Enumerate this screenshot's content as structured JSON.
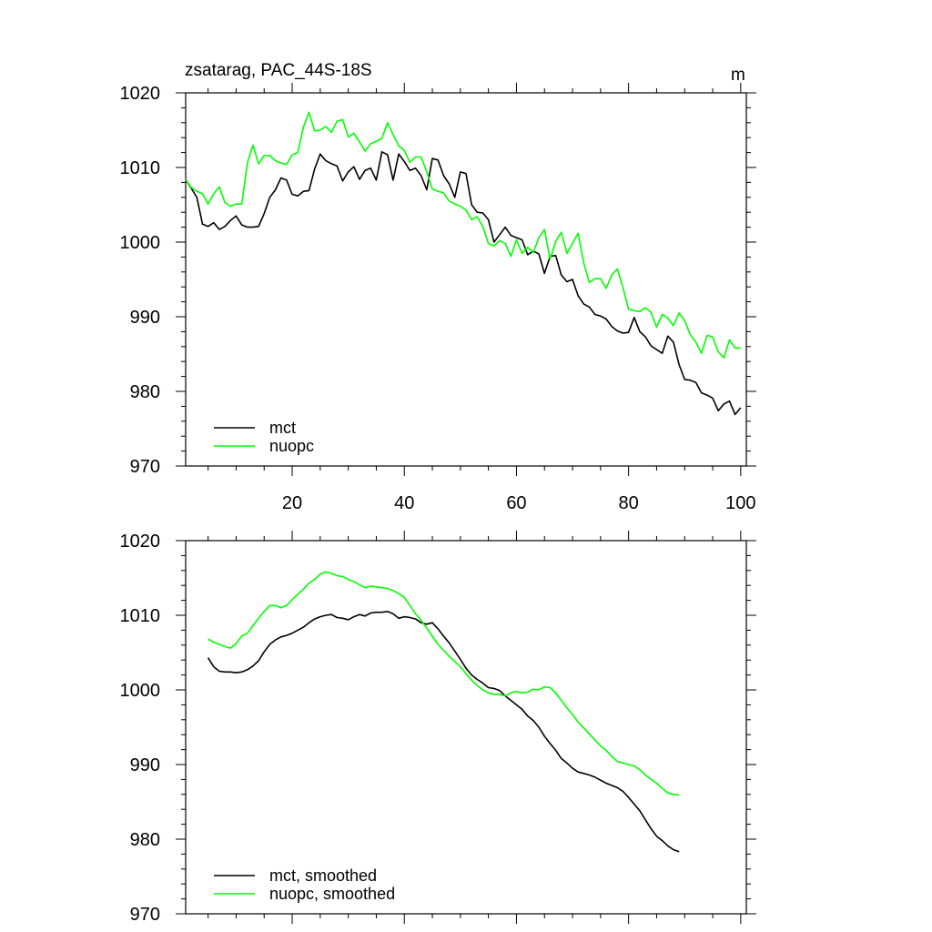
{
  "chart_data": [
    {
      "type": "line",
      "title": "zsatarag, PAC_44S-18S",
      "units": "m",
      "xlim": [
        1,
        101
      ],
      "ylim": [
        970,
        1020
      ],
      "x_ticks": [
        20,
        40,
        60,
        80,
        100
      ],
      "y_ticks": [
        970,
        980,
        990,
        1000,
        1010,
        1020
      ],
      "legend_position": "bottom-left",
      "series": [
        {
          "name": "mct",
          "color": "#000000",
          "values": [
            1008.4,
            1007.2,
            1006.0,
            1002.4,
            1002.1,
            1002.6,
            1001.7,
            1002.1,
            1002.9,
            1003.5,
            1002.3,
            1002.0,
            1002.0,
            1002.1,
            1003.8,
            1006.0,
            1007.0,
            1008.6,
            1008.3,
            1006.4,
            1006.2,
            1006.8,
            1006.9,
            1009.8,
            1011.8,
            1010.9,
            1010.5,
            1010.2,
            1008.2,
            1009.4,
            1010.1,
            1008.4,
            1009.6,
            1009.9,
            1008.3,
            1012.1,
            1011.7,
            1008.3,
            1011.8,
            1010.8,
            1009.6,
            1009.9,
            1008.9,
            1007.0,
            1011.2,
            1011.0,
            1008.9,
            1007.8,
            1006.0,
            1009.4,
            1009.2,
            1005.0,
            1004.0,
            1003.9,
            1003.0,
            1000.0,
            1001.0,
            1002.0,
            1000.9,
            1000.6,
            1000.3,
            998.3,
            998.8,
            998.4,
            995.8,
            998.1,
            998.2,
            995.6,
            994.7,
            995.0,
            992.8,
            991.7,
            991.3,
            990.3,
            990.1,
            989.7,
            988.7,
            988.1,
            987.8,
            987.9,
            989.9,
            988.0,
            987.3,
            986.1,
            985.6,
            985.1,
            987.4,
            986.6,
            983.6,
            981.6,
            981.5,
            981.2,
            979.8,
            979.5,
            979.1,
            977.4,
            978.3,
            978.7,
            976.9,
            977.8
          ]
        },
        {
          "name": "nuopc",
          "color": "#00ff00",
          "values": [
            1008.4,
            1007.3,
            1006.8,
            1006.5,
            1005.1,
            1006.5,
            1007.4,
            1005.3,
            1004.8,
            1005.1,
            1005.1,
            1010.6,
            1013.0,
            1010.5,
            1011.6,
            1011.6,
            1010.9,
            1010.6,
            1010.4,
            1011.7,
            1012.0,
            1015.4,
            1017.4,
            1014.9,
            1015.0,
            1015.5,
            1014.7,
            1016.2,
            1016.4,
            1014.1,
            1014.6,
            1013.4,
            1012.2,
            1013.2,
            1013.5,
            1013.9,
            1016.0,
            1014.4,
            1012.9,
            1012.3,
            1010.7,
            1011.4,
            1011.4,
            1009.4,
            1007.1,
            1006.8,
            1006.6,
            1005.5,
            1005.1,
            1004.8,
            1004.3,
            1003.0,
            1003.4,
            1002.1,
            999.8,
            999.5,
            1000.2,
            999.8,
            998.1,
            1000.3,
            998.5,
            999.3,
            998.6,
            1000.6,
            1001.7,
            997.7,
            1000.1,
            1001.3,
            998.5,
            999.8,
            1001.2,
            997.2,
            994.6,
            995.1,
            995.1,
            993.8,
            995.6,
            996.4,
            993.9,
            991.0,
            990.8,
            990.7,
            991.2,
            990.6,
            988.6,
            990.3,
            989.8,
            988.8,
            990.5,
            989.5,
            987.6,
            986.6,
            985.1,
            987.5,
            987.3,
            985.3,
            984.5,
            986.9,
            985.8,
            985.8
          ]
        }
      ]
    },
    {
      "type": "line",
      "title": "",
      "xlim": [
        1,
        101
      ],
      "ylim": [
        970,
        1020
      ],
      "x_ticks": [
        20,
        40,
        60,
        80,
        100
      ],
      "y_ticks": [
        970,
        980,
        990,
        1000,
        1010,
        1020
      ],
      "legend_position": "bottom-left",
      "x_start": 5,
      "series": [
        {
          "name": "mct, smoothed",
          "color": "#000000",
          "values": [
            1004.3,
            1003.1,
            1002.5,
            1002.4,
            1002.4,
            1002.3,
            1002.4,
            1002.7,
            1003.2,
            1003.9,
            1005.1,
            1006.1,
            1006.7,
            1007.1,
            1007.3,
            1007.6,
            1008.0,
            1008.4,
            1009.0,
            1009.5,
            1009.8,
            1010.0,
            1010.1,
            1009.7,
            1009.6,
            1009.4,
            1009.8,
            1010.1,
            1009.9,
            1010.3,
            1010.4,
            1010.4,
            1010.5,
            1010.2,
            1009.6,
            1009.8,
            1009.7,
            1009.5,
            1009.0,
            1008.8,
            1009.0,
            1008.2,
            1007.2,
            1006.3,
            1005.2,
            1004.1,
            1002.9,
            1002.0,
            1001.4,
            1000.9,
            1000.3,
            1000.2,
            999.9,
            999.2,
            998.6,
            998.0,
            997.4,
            996.5,
            995.9,
            995.0,
            993.8,
            992.8,
            991.9,
            990.8,
            990.2,
            989.5,
            989.0,
            988.8,
            988.6,
            988.3,
            987.9,
            987.5,
            987.2,
            986.9,
            986.4,
            985.6,
            984.7,
            983.8,
            982.6,
            981.4,
            980.4,
            979.8,
            979.1,
            978.6,
            978.3
          ]
        },
        {
          "name": "nuopc, smoothed",
          "color": "#00ff00",
          "values": [
            1006.8,
            1006.4,
            1006.1,
            1005.8,
            1005.6,
            1006.2,
            1007.2,
            1007.6,
            1008.6,
            1009.6,
            1010.5,
            1011.3,
            1011.3,
            1011.0,
            1011.3,
            1012.1,
            1012.8,
            1013.5,
            1014.3,
            1014.8,
            1015.5,
            1015.8,
            1015.6,
            1015.3,
            1015.2,
            1014.8,
            1014.5,
            1014.1,
            1013.7,
            1013.9,
            1013.8,
            1013.7,
            1013.6,
            1013.3,
            1012.9,
            1012.4,
            1011.3,
            1010.2,
            1009.3,
            1008.3,
            1007.2,
            1006.1,
            1005.3,
            1004.5,
            1003.8,
            1003.1,
            1002.2,
            1001.3,
            1000.6,
            1000.0,
            999.6,
            999.4,
            999.4,
            999.2,
            999.6,
            999.8,
            999.6,
            999.7,
            1000.1,
            1000.0,
            1000.4,
            1000.3,
            999.6,
            998.6,
            997.6,
            996.7,
            995.7,
            994.9,
            994.1,
            993.3,
            992.5,
            991.9,
            991.1,
            990.4,
            990.2,
            990.0,
            989.8,
            989.3,
            988.6,
            988.0,
            987.5,
            986.8,
            986.2,
            986.0,
            985.9
          ]
        }
      ]
    }
  ]
}
